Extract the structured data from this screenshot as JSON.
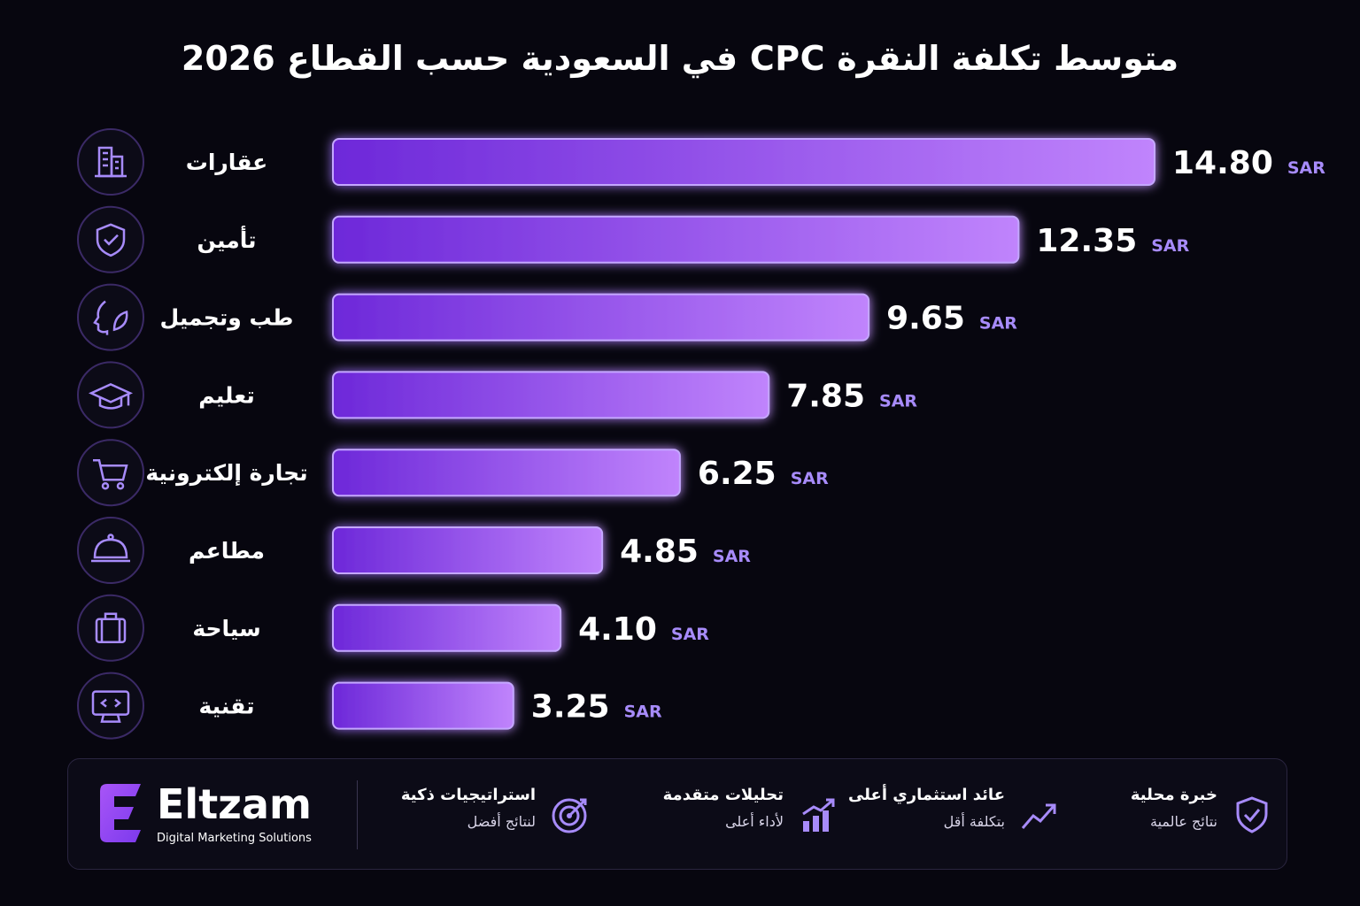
{
  "chart_data": {
    "type": "bar",
    "orientation": "horizontal",
    "title": "متوسط تكلفة النقرة CPC في السعودية حسب القطاع 2026",
    "categories": [
      "عقارات",
      "تأمين",
      "طب وتجميل",
      "تعليم",
      "تجارة إلكترونية",
      "مطاعم",
      "سياحة",
      "تقنية"
    ],
    "icons": [
      "building-icon",
      "shield-check-icon",
      "face-leaf-icon",
      "graduation-cap-icon",
      "shopping-cart-icon",
      "cloche-icon",
      "suitcase-icon",
      "monitor-code-icon"
    ],
    "values": [
      14.8,
      12.35,
      9.65,
      7.85,
      6.25,
      4.85,
      4.1,
      3.25
    ],
    "value_labels": [
      "14.80",
      "12.35",
      "9.65",
      "7.85",
      "6.25",
      "4.85",
      "4.10",
      "3.25"
    ],
    "unit": "SAR",
    "xlim": [
      0,
      14.8
    ],
    "grid": false,
    "colors": {
      "bar_start": "#6d28d9",
      "bar_end": "#c084fc",
      "unit": "#a78bfa",
      "icon": "#a78bfa",
      "background": "#07060f"
    }
  },
  "footer": {
    "brand": {
      "name": "Eltzam",
      "tagline": "Digital Marketing Solutions"
    },
    "features": [
      {
        "title": "خبرة محلية",
        "subtitle": "نتائج عالمية",
        "icon": "shield-check-icon"
      },
      {
        "title": "عائد استثماري أعلى",
        "subtitle": "بتكلفة أقل",
        "icon": "trend-up-icon"
      },
      {
        "title": "تحليلات متقدمة",
        "subtitle": "لأداء أعلى",
        "icon": "bar-growth-icon"
      },
      {
        "title": "استراتيجيات ذكية",
        "subtitle": "لنتائج أفضل",
        "icon": "target-icon"
      }
    ]
  }
}
